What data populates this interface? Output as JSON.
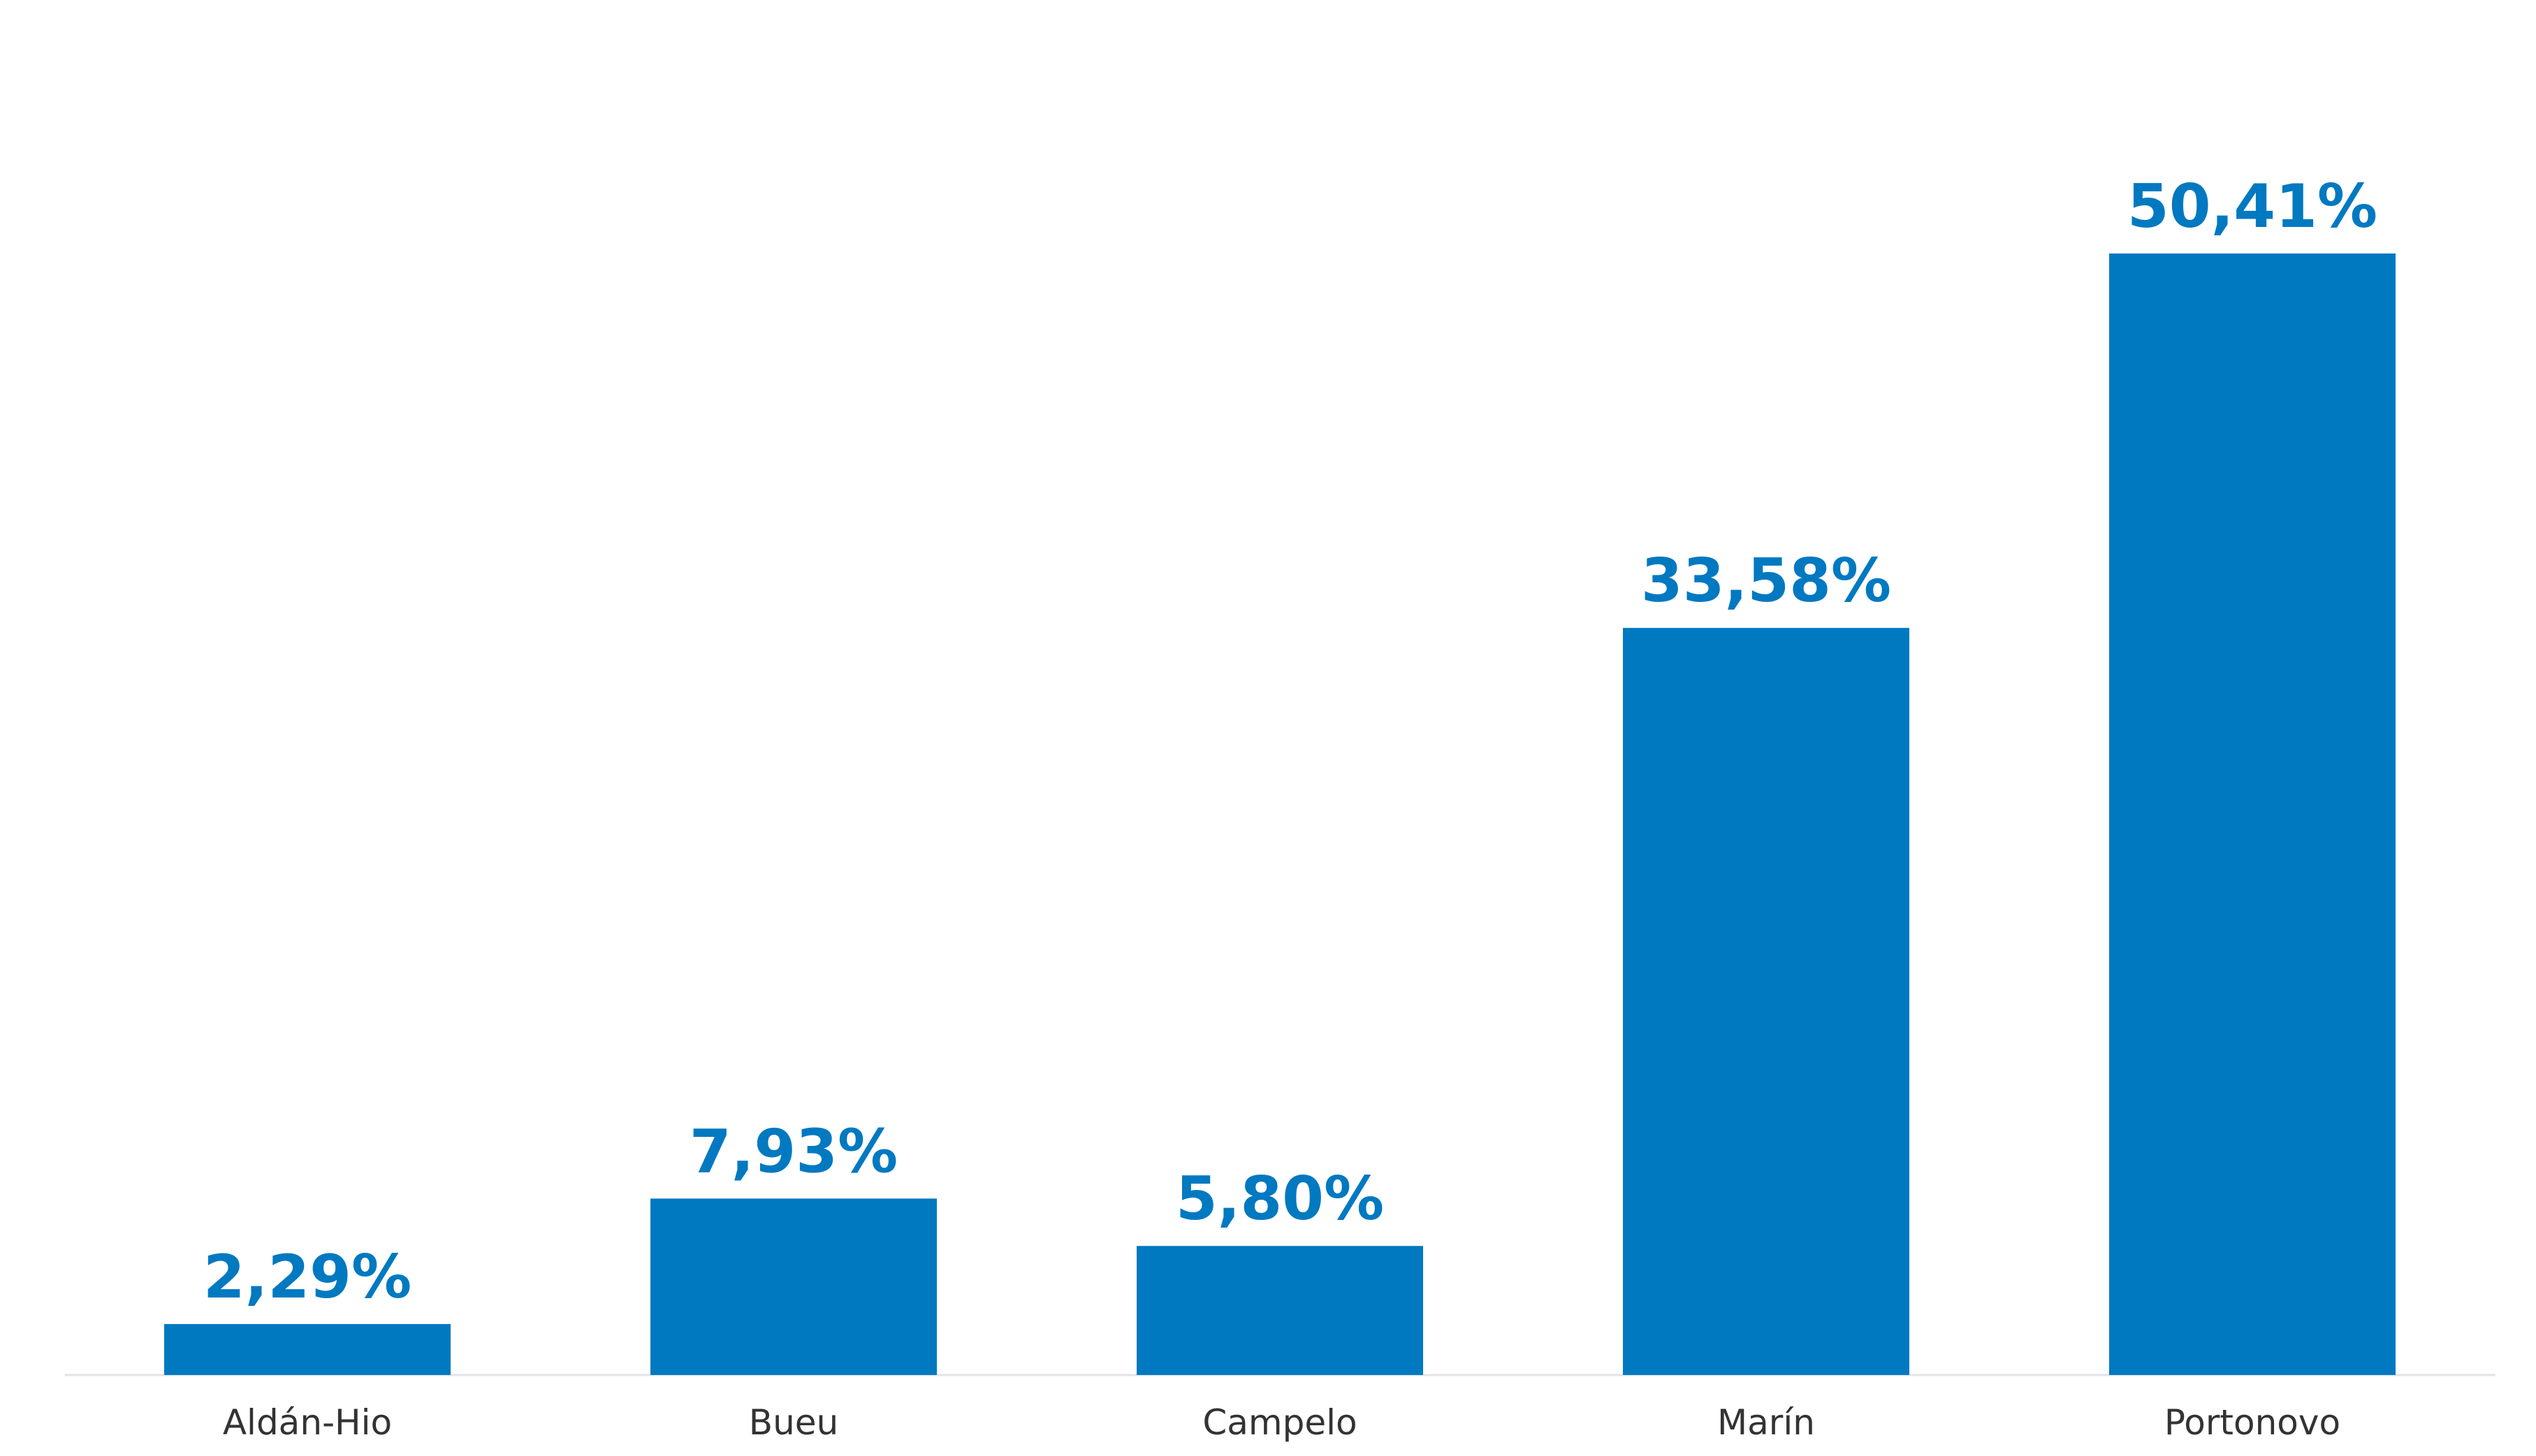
{
  "chart_data": {
    "type": "bar",
    "categories": [
      "Aldán-Hio",
      "Bueu",
      "Campelo",
      "Marín",
      "Portonovo"
    ],
    "values": [
      2.29,
      7.93,
      5.8,
      33.58,
      50.41
    ],
    "value_labels": [
      "2,29%",
      "7,93%",
      "5,80%",
      "33,58%",
      "50,41%"
    ],
    "color": "#0079c1"
  }
}
